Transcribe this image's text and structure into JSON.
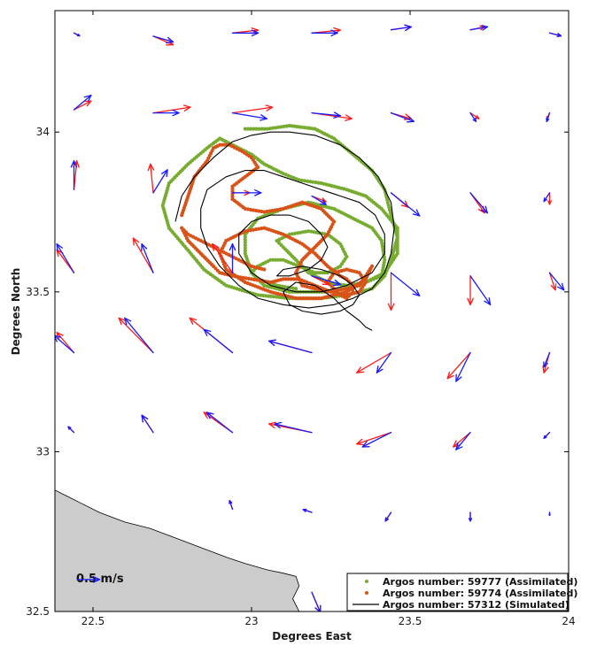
{
  "chart_data": {
    "type": "line",
    "xlabel": "Degrees East",
    "ylabel": "Degrees North",
    "xlim": [
      22.38,
      24.0
    ],
    "ylim": [
      32.5,
      34.38
    ],
    "x_ticks": [
      {
        "v": 22.5,
        "label": "22.5"
      },
      {
        "v": 23.0,
        "label": "23"
      },
      {
        "v": 23.5,
        "label": "23.5"
      },
      {
        "v": 24.0,
        "label": "24"
      }
    ],
    "y_ticks": [
      {
        "v": 32.5,
        "label": "32.5"
      },
      {
        "v": 33.0,
        "label": "33"
      },
      {
        "v": 33.5,
        "label": "33.5"
      },
      {
        "v": 34.0,
        "label": "34"
      }
    ],
    "scale_arrow": {
      "label": "0.5 m/s",
      "x": 22.45,
      "y": 32.6,
      "u": 0.5,
      "v": 0
    },
    "legend_position": "bottom-right",
    "legend": [
      {
        "label": "Argos number: 59777 (Assimilated)",
        "color": "#77ac30",
        "style": "dots"
      },
      {
        "label": "Argos number: 59774 (Assimilated)",
        "color": "#d95319",
        "style": "dots"
      },
      {
        "label": "Argos number: 57312 (Simulated)",
        "color": "#000000",
        "style": "line"
      }
    ],
    "land": {
      "color": "#cccccc",
      "coast": [
        [
          22.38,
          32.88
        ],
        [
          22.42,
          32.86
        ],
        [
          22.46,
          32.84
        ],
        [
          22.52,
          32.81
        ],
        [
          22.6,
          32.78
        ],
        [
          22.68,
          32.76
        ],
        [
          22.76,
          32.73
        ],
        [
          22.84,
          32.7
        ],
        [
          22.92,
          32.67
        ],
        [
          22.98,
          32.65
        ],
        [
          23.05,
          32.63
        ],
        [
          23.1,
          32.62
        ],
        [
          23.14,
          32.61
        ],
        [
          23.15,
          32.58
        ],
        [
          23.13,
          32.54
        ],
        [
          23.15,
          32.5
        ]
      ]
    },
    "arrow_scale": 0.9,
    "vectors": [
      {
        "x": 22.44,
        "y": 34.31,
        "blue": [
          0.02,
          -0.01
        ],
        "red": [
          0.02,
          -0.01
        ]
      },
      {
        "x": 22.69,
        "y": 34.3,
        "blue": [
          0.07,
          -0.02
        ],
        "red": [
          0.07,
          -0.03
        ]
      },
      {
        "x": 22.94,
        "y": 34.31,
        "blue": [
          0.09,
          0.0
        ],
        "red": [
          0.09,
          0.01
        ]
      },
      {
        "x": 23.19,
        "y": 34.31,
        "blue": [
          0.09,
          0.0
        ],
        "red": [
          0.1,
          0.01
        ]
      },
      {
        "x": 23.44,
        "y": 34.32,
        "blue": [
          0.07,
          0.01
        ],
        "red": [
          0.07,
          0.01
        ]
      },
      {
        "x": 23.69,
        "y": 34.32,
        "blue": [
          0.06,
          0.01
        ],
        "red": [
          0.05,
          0.01
        ]
      },
      {
        "x": 23.94,
        "y": 34.31,
        "blue": [
          0.04,
          -0.01
        ],
        "red": [
          0.04,
          -0.01
        ]
      },
      {
        "x": 22.44,
        "y": 34.07,
        "blue": [
          0.06,
          0.05
        ],
        "red": [
          0.06,
          0.03
        ]
      },
      {
        "x": 22.69,
        "y": 34.06,
        "blue": [
          0.09,
          0.0
        ],
        "red": [
          0.13,
          0.02
        ]
      },
      {
        "x": 22.94,
        "y": 34.06,
        "blue": [
          0.12,
          -0.02
        ],
        "red": [
          0.14,
          0.02
        ]
      },
      {
        "x": 23.19,
        "y": 34.06,
        "blue": [
          0.1,
          -0.01
        ],
        "red": [
          0.14,
          -0.02
        ]
      },
      {
        "x": 23.44,
        "y": 34.06,
        "blue": [
          0.08,
          -0.03
        ],
        "red": [
          0.07,
          -0.02
        ]
      },
      {
        "x": 23.69,
        "y": 34.06,
        "blue": [
          0.02,
          -0.03
        ],
        "red": [
          0.03,
          -0.02
        ]
      },
      {
        "x": 23.94,
        "y": 34.06,
        "blue": [
          -0.01,
          -0.03
        ],
        "red": [
          -0.01,
          -0.02
        ]
      },
      {
        "x": 22.44,
        "y": 33.82,
        "blue": [
          0.0,
          0.1
        ],
        "red": [
          0.01,
          0.1
        ]
      },
      {
        "x": 22.69,
        "y": 33.81,
        "blue": [
          0.05,
          0.08
        ],
        "red": [
          -0.01,
          0.1
        ]
      },
      {
        "x": 22.94,
        "y": 33.81,
        "blue": [
          0.1,
          0.0
        ],
        "red": [
          0.06,
          0.0
        ]
      },
      {
        "x": 23.19,
        "y": 33.8,
        "blue": [
          0.05,
          -0.03
        ],
        "red": [
          0.05,
          -0.02
        ]
      },
      {
        "x": 23.44,
        "y": 33.81,
        "blue": [
          0.1,
          -0.08
        ],
        "red": [
          0.06,
          -0.05
        ]
      },
      {
        "x": 23.69,
        "y": 33.81,
        "blue": [
          0.06,
          -0.07
        ],
        "red": [
          0.05,
          -0.07
        ]
      },
      {
        "x": 23.94,
        "y": 33.81,
        "blue": [
          -0.02,
          -0.03
        ],
        "red": [
          0.0,
          -0.04
        ]
      },
      {
        "x": 22.44,
        "y": 33.56,
        "blue": [
          -0.06,
          0.1
        ],
        "red": [
          -0.06,
          0.08
        ]
      },
      {
        "x": 22.69,
        "y": 33.56,
        "blue": [
          -0.04,
          0.1
        ],
        "red": [
          -0.07,
          0.12
        ]
      },
      {
        "x": 22.94,
        "y": 33.56,
        "blue": [
          0.0,
          0.1
        ],
        "red": [
          -0.07,
          0.1
        ]
      },
      {
        "x": 23.19,
        "y": 33.55,
        "blue": [
          0.1,
          -0.03
        ],
        "red": [
          0.06,
          -0.03
        ]
      },
      {
        "x": 23.44,
        "y": 33.56,
        "blue": [
          0.1,
          -0.08
        ],
        "red": [
          0.0,
          -0.13
        ]
      },
      {
        "x": 23.69,
        "y": 33.55,
        "blue": [
          0.07,
          -0.1
        ],
        "red": [
          0.0,
          -0.1
        ]
      },
      {
        "x": 23.94,
        "y": 33.56,
        "blue": [
          0.05,
          -0.06
        ],
        "red": [
          0.02,
          -0.06
        ]
      },
      {
        "x": 22.44,
        "y": 33.31,
        "blue": [
          -0.07,
          0.06
        ],
        "red": [
          -0.06,
          0.07
        ]
      },
      {
        "x": 22.69,
        "y": 33.31,
        "blue": [
          -0.1,
          0.12
        ],
        "red": [
          -0.12,
          0.12
        ]
      },
      {
        "x": 22.94,
        "y": 33.31,
        "blue": [
          -0.1,
          0.08
        ],
        "red": [
          -0.15,
          0.12
        ]
      },
      {
        "x": 23.19,
        "y": 33.31,
        "blue": [
          -0.15,
          0.04
        ],
        "red": [
          -0.15,
          0.04
        ]
      },
      {
        "x": 23.44,
        "y": 33.31,
        "blue": [
          -0.05,
          -0.07
        ],
        "red": [
          -0.12,
          -0.07
        ]
      },
      {
        "x": 23.69,
        "y": 33.31,
        "blue": [
          -0.05,
          -0.1
        ],
        "red": [
          -0.08,
          -0.09
        ]
      },
      {
        "x": 23.94,
        "y": 33.31,
        "blue": [
          -0.02,
          -0.05
        ],
        "red": [
          -0.02,
          -0.07
        ]
      },
      {
        "x": 22.44,
        "y": 33.06,
        "blue": [
          -0.02,
          0.02
        ],
        "red": [
          -0.02,
          0.02
        ]
      },
      {
        "x": 22.69,
        "y": 33.06,
        "blue": [
          -0.04,
          0.06
        ],
        "red": [
          -0.04,
          0.06
        ]
      },
      {
        "x": 22.94,
        "y": 33.06,
        "blue": [
          -0.09,
          0.07
        ],
        "red": [
          -0.1,
          0.07
        ]
      },
      {
        "x": 23.19,
        "y": 33.06,
        "blue": [
          -0.13,
          0.03
        ],
        "red": [
          -0.15,
          0.03
        ]
      },
      {
        "x": 23.44,
        "y": 33.06,
        "blue": [
          -0.1,
          -0.05
        ],
        "red": [
          -0.12,
          -0.04
        ]
      },
      {
        "x": 23.69,
        "y": 33.06,
        "blue": [
          -0.05,
          -0.06
        ],
        "red": [
          -0.06,
          -0.05
        ]
      },
      {
        "x": 23.94,
        "y": 33.06,
        "blue": [
          -0.02,
          -0.02
        ],
        "red": [
          -0.02,
          -0.02
        ]
      },
      {
        "x": 22.94,
        "y": 32.82,
        "blue": [
          -0.01,
          0.03
        ],
        "red": [
          -0.01,
          0.03
        ]
      },
      {
        "x": 23.19,
        "y": 32.81,
        "blue": [
          -0.03,
          0.01
        ],
        "red": [
          -0.03,
          0.01
        ]
      },
      {
        "x": 23.44,
        "y": 32.81,
        "blue": [
          -0.02,
          -0.03
        ],
        "red": [
          -0.02,
          -0.03
        ]
      },
      {
        "x": 23.69,
        "y": 32.81,
        "blue": [
          0.0,
          -0.03
        ],
        "red": [
          0.0,
          -0.03
        ]
      },
      {
        "x": 23.94,
        "y": 32.81,
        "blue": [
          0.0,
          -0.01
        ],
        "red": [
          0.0,
          -0.01
        ]
      },
      {
        "x": 23.19,
        "y": 32.56,
        "blue": [
          0.03,
          -0.07
        ],
        "red": [
          0.03,
          -0.07
        ]
      }
    ],
    "series": [
      {
        "name": "Argos number: 59777 (Assimilated)",
        "color": "#77ac30",
        "style": "dots",
        "x": [
          22.98,
          23.05,
          23.12,
          23.2,
          23.26,
          23.32,
          23.38,
          23.42,
          23.44,
          23.46,
          23.44,
          23.42,
          23.38,
          23.3,
          23.22,
          23.12,
          23.02,
          22.92,
          22.85,
          22.8,
          22.74,
          22.72,
          22.74,
          22.8,
          22.86,
          22.9,
          22.92,
          22.96,
          23.0,
          23.04,
          23.1,
          23.15,
          23.22,
          23.3,
          23.36,
          23.41,
          23.46,
          23.46,
          23.42,
          23.34,
          23.24,
          23.12,
          23.04,
          23.0,
          22.98,
          22.98,
          23.02,
          23.1,
          23.18,
          23.26,
          23.32,
          23.38,
          23.41,
          23.42,
          23.41,
          23.36,
          23.3,
          23.24,
          23.18,
          23.14,
          23.1,
          23.08,
          23.12,
          23.18,
          23.24,
          23.28,
          23.3,
          23.28,
          23.24,
          23.2,
          23.15,
          23.1,
          23.06,
          23.02,
          23.0,
          23.02,
          23.08,
          23.14
        ],
        "y": [
          34.01,
          34.01,
          34.02,
          34.01,
          33.98,
          33.93,
          33.88,
          33.82,
          33.74,
          33.67,
          33.6,
          33.55,
          33.51,
          33.49,
          33.48,
          33.48,
          33.49,
          33.52,
          33.57,
          33.63,
          33.7,
          33.77,
          33.84,
          33.9,
          33.95,
          33.98,
          33.97,
          33.95,
          33.93,
          33.9,
          33.87,
          33.85,
          33.84,
          33.82,
          33.8,
          33.76,
          33.7,
          33.62,
          33.56,
          33.52,
          33.5,
          33.5,
          33.52,
          33.56,
          33.62,
          33.68,
          33.73,
          33.76,
          33.78,
          33.76,
          33.73,
          33.7,
          33.66,
          33.6,
          33.55,
          33.53,
          33.52,
          33.53,
          33.56,
          33.6,
          33.64,
          33.66,
          33.68,
          33.69,
          33.68,
          33.65,
          33.61,
          33.58,
          33.56,
          33.56,
          33.58,
          33.6,
          33.6,
          33.58,
          33.56,
          33.54,
          33.52,
          33.51
        ]
      },
      {
        "name": "Argos number: 59774 (Assimilated)",
        "color": "#d95319",
        "style": "dots",
        "x": [
          22.78,
          22.8,
          22.82,
          22.86,
          22.88,
          22.9,
          22.93,
          22.97,
          23.0,
          23.02,
          22.98,
          22.94,
          22.94,
          22.98,
          23.04,
          23.1,
          23.16,
          23.22,
          23.26,
          23.24,
          23.2,
          23.16,
          23.14,
          23.16,
          23.2,
          23.24,
          23.3,
          23.34,
          23.36,
          23.38,
          23.36,
          23.3,
          23.22,
          23.14,
          23.06,
          22.98,
          22.92,
          22.9,
          22.92,
          22.98,
          23.04,
          23.1,
          23.16,
          23.2,
          23.24,
          23.28,
          23.3,
          23.32,
          23.32,
          23.3,
          23.28,
          23.26,
          23.24,
          23.26,
          23.3,
          23.34,
          23.36,
          23.34,
          23.3,
          23.25,
          23.2,
          23.15,
          23.1,
          23.06,
          23.0,
          22.94,
          22.9,
          22.88,
          22.84,
          22.8,
          22.78,
          22.8,
          22.84,
          22.88,
          22.92,
          22.96,
          23.0,
          23.04
        ],
        "y": [
          33.74,
          33.8,
          33.86,
          33.91,
          33.95,
          33.96,
          33.96,
          33.94,
          33.92,
          33.89,
          33.86,
          33.83,
          33.79,
          33.76,
          33.75,
          33.76,
          33.78,
          33.76,
          33.72,
          33.68,
          33.64,
          33.6,
          33.56,
          33.52,
          33.51,
          33.5,
          33.51,
          33.52,
          33.55,
          33.58,
          33.54,
          33.5,
          33.48,
          33.48,
          33.5,
          33.53,
          33.57,
          33.62,
          33.66,
          33.69,
          33.7,
          33.68,
          33.65,
          33.62,
          33.58,
          33.55,
          33.54,
          33.52,
          33.5,
          33.48,
          33.49,
          33.51,
          33.53,
          33.56,
          33.57,
          33.56,
          33.53,
          33.5,
          33.49,
          33.5,
          33.52,
          33.54,
          33.54,
          33.53,
          33.54,
          33.55,
          33.56,
          33.58,
          33.62,
          33.66,
          33.7,
          33.68,
          33.66,
          33.64,
          33.62,
          33.6,
          33.58,
          33.57
        ]
      },
      {
        "name": "Argos number: 57312 (Simulated)",
        "color": "#000000",
        "style": "line",
        "x": [
          22.76,
          22.78,
          22.82,
          22.88,
          22.94,
          23.0,
          23.06,
          23.12,
          23.2,
          23.28,
          23.34,
          23.4,
          23.44,
          23.45,
          23.44,
          23.42,
          23.38,
          23.32,
          23.26,
          23.18,
          23.1,
          23.02,
          22.96,
          22.9,
          22.86,
          22.84,
          22.84,
          22.86,
          22.92,
          22.98,
          23.04,
          23.1,
          23.16,
          23.22,
          23.28,
          23.34,
          23.39,
          23.42,
          23.42,
          23.38,
          23.3,
          23.22,
          23.14,
          23.06,
          23.0,
          22.96,
          22.96,
          23.0,
          23.06,
          23.12,
          23.18,
          23.22,
          23.24,
          23.22,
          23.18,
          23.12,
          23.08,
          23.1,
          23.16,
          23.22,
          23.28,
          23.32,
          23.34,
          23.32,
          23.28,
          23.22,
          23.16,
          23.12,
          23.1,
          23.14,
          23.2,
          23.26,
          23.3,
          23.34,
          23.36,
          23.38
        ],
        "y": [
          33.72,
          33.8,
          33.86,
          33.92,
          33.97,
          33.99,
          34.0,
          34.0,
          33.99,
          33.96,
          33.92,
          33.86,
          33.78,
          33.7,
          33.62,
          33.56,
          33.51,
          33.48,
          33.46,
          33.45,
          33.46,
          33.48,
          33.52,
          33.58,
          33.64,
          33.7,
          33.76,
          33.82,
          33.86,
          33.88,
          33.88,
          33.86,
          33.84,
          33.82,
          33.8,
          33.78,
          33.74,
          33.68,
          33.62,
          33.56,
          33.52,
          33.5,
          33.5,
          33.52,
          33.56,
          33.62,
          33.68,
          33.72,
          33.74,
          33.74,
          33.72,
          33.68,
          33.64,
          33.6,
          33.57,
          33.55,
          33.55,
          33.57,
          33.58,
          33.57,
          33.55,
          33.52,
          33.49,
          33.46,
          33.44,
          33.43,
          33.44,
          33.46,
          33.5,
          33.53,
          33.52,
          33.48,
          33.44,
          33.41,
          33.39,
          33.38
        ]
      }
    ]
  }
}
